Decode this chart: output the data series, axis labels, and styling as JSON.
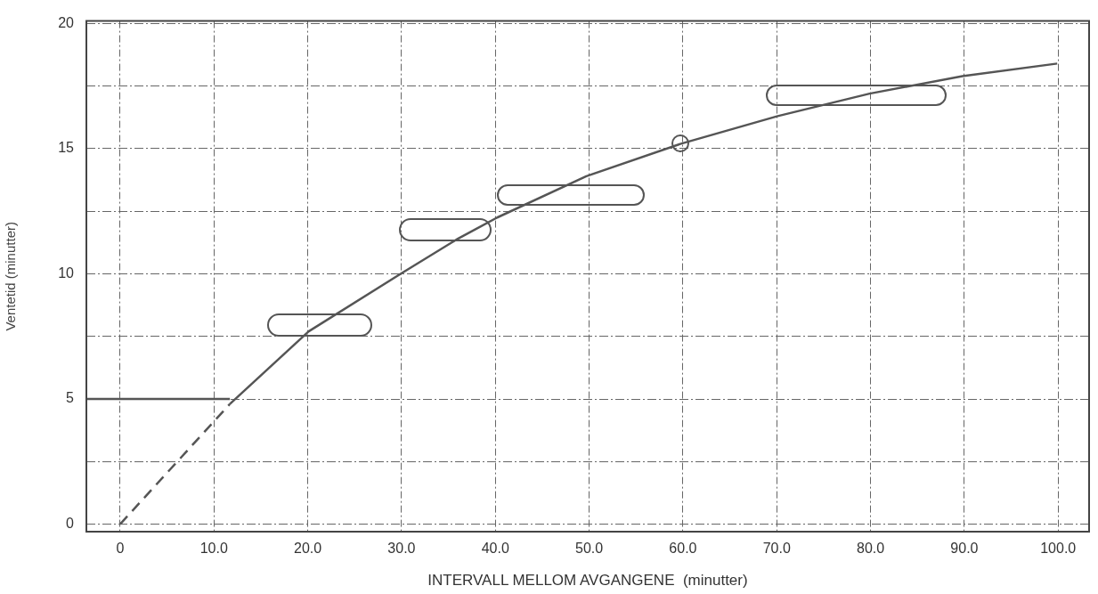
{
  "chart_data": {
    "type": "line",
    "xlabel": "INTERVALL MELLOM AVGANGENE  (minutter)",
    "ylabel": "Ventetid (minutter)",
    "xlim": [
      -3.6,
      103.3
    ],
    "ylim": [
      -0.3,
      20.1
    ],
    "xticks": [
      0,
      {
        "value": 10,
        "label": "10.0"
      },
      {
        "value": 20,
        "label": "20.0"
      },
      {
        "value": 30,
        "label": "30.0"
      },
      {
        "value": 40,
        "label": "40.0"
      },
      {
        "value": 50,
        "label": "50.0"
      },
      {
        "value": 60,
        "label": "60.0"
      },
      {
        "value": 70,
        "label": "70.0"
      },
      {
        "value": 80,
        "label": "80.0"
      },
      {
        "value": 90,
        "label": "90.0"
      },
      {
        "value": 100,
        "label": "100.0"
      }
    ],
    "yticks": [
      0,
      {
        "value": 2.5,
        "label": null
      },
      5,
      {
        "value": 7.5,
        "label": null
      },
      10,
      {
        "value": 12.5,
        "label": null
      },
      15,
      {
        "value": 17.5,
        "label": null
      },
      20
    ],
    "grid": true,
    "legend": false,
    "marker": "none",
    "series": [
      {
        "color": "#555555",
        "line_style": "solid",
        "x": [
          11.7,
          20.1,
          29.9,
          36.0,
          40.2,
          49.7,
          59.8,
          70.1,
          79.9,
          89.8,
          99.9
        ],
        "values": [
          4.8,
          7.7,
          10.0,
          11.4,
          12.25,
          13.9,
          15.2,
          16.3,
          17.2,
          17.9,
          18.4
        ]
      },
      {
        "color": "#555555",
        "line_style": "solid",
        "x": [
          -3.6,
          11.7
        ],
        "values": [
          5,
          5
        ]
      },
      {
        "color": "#555555",
        "line_style": "dashed",
        "x": [
          0,
          11.7
        ],
        "values": [
          0,
          4.8
        ]
      }
    ]
  }
}
